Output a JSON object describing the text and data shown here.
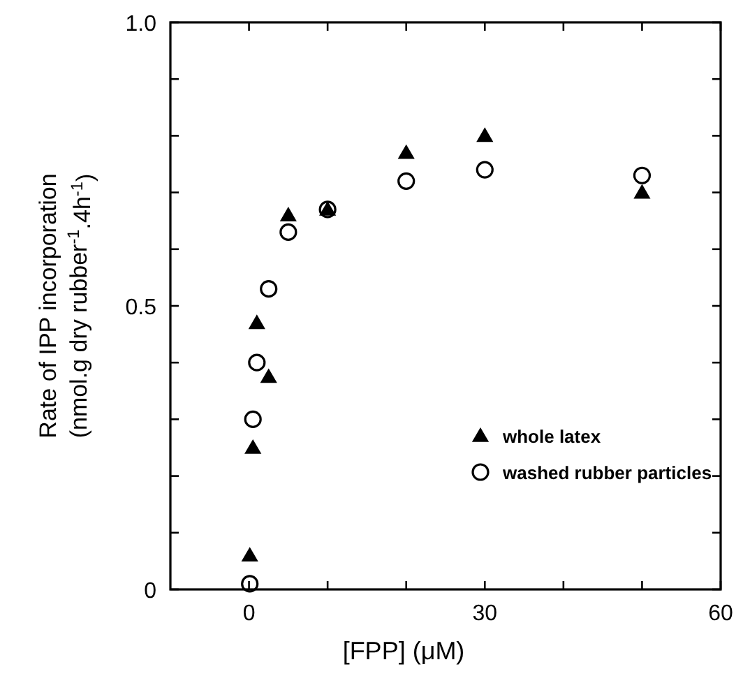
{
  "chart_data": {
    "type": "scatter",
    "xlabel": "[FPP] (μM)",
    "ylabel": "Rate of IPP incorporation\n(nmol.g dry rubber$^{-1}$.4h$^{-1}$)",
    "xlim": [
      -10,
      60
    ],
    "xticks": [
      0,
      {
        "value": 10,
        "label": null
      },
      {
        "value": 20,
        "label": null
      },
      30,
      {
        "value": 40,
        "label": null
      },
      {
        "value": 50,
        "label": null
      },
      60
    ],
    "ylim": [
      0,
      1
    ],
    "yticks": [
      0,
      {
        "value": 0.1,
        "label": null
      },
      {
        "value": 0.2,
        "label": null
      },
      {
        "value": 0.3,
        "label": null
      },
      {
        "value": 0.4,
        "label": null
      },
      {
        "value": 0.5,
        "label": "0.5"
      },
      {
        "value": 0.6,
        "label": null
      },
      {
        "value": 0.7,
        "label": null
      },
      {
        "value": 0.8,
        "label": null
      },
      {
        "value": 0.9,
        "label": null
      },
      {
        "value": 1,
        "label": "1.0"
      }
    ],
    "legend": "bottom right",
    "grid": false,
    "series": [
      {
        "name": "whole latex",
        "color": "#000000",
        "marker": "triangle",
        "x": [
          0.1,
          0.5,
          1,
          2.5,
          5,
          10,
          20,
          30,
          50
        ],
        "values": [
          0.06,
          0.25,
          0.47,
          0.375,
          0.66,
          0.67,
          0.77,
          0.8,
          0.7
        ]
      },
      {
        "name": "washed rubber particles",
        "color": "#000000",
        "marker": "circle",
        "x": [
          0.1,
          0.5,
          1,
          2.5,
          5,
          10,
          20,
          30,
          50
        ],
        "values": [
          0.01,
          0.3,
          0.4,
          0.53,
          0.63,
          0.67,
          0.72,
          0.74,
          0.73
        ]
      }
    ]
  }
}
